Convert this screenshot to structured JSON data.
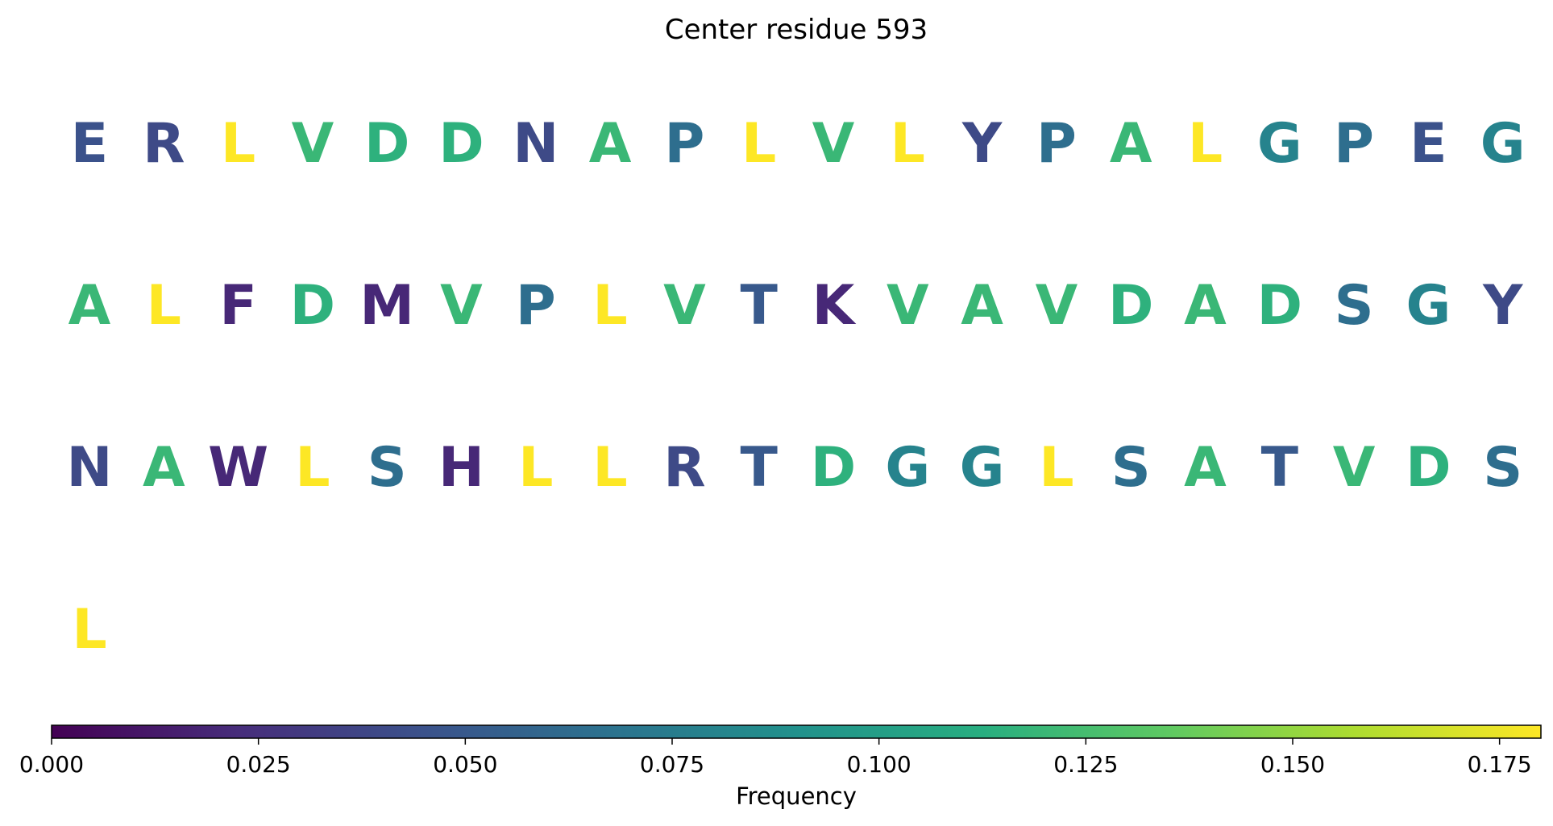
{
  "chart_data": {
    "type": "sequence-heatmap",
    "title": "Center residue 593",
    "colormap": "viridis",
    "vmin": 0.0,
    "vmax": 0.18,
    "colorbar": {
      "label": "Frequency",
      "ticks": [
        0.0,
        0.025,
        0.05,
        0.075,
        0.1,
        0.125,
        0.15,
        0.175
      ],
      "tick_labels": [
        "0.000",
        "0.025",
        "0.050",
        "0.075",
        "0.100",
        "0.125",
        "0.150",
        "0.175"
      ]
    },
    "columns_per_row": 20,
    "residues": [
      {
        "letter": "E",
        "value": 0.045
      },
      {
        "letter": "R",
        "value": 0.04
      },
      {
        "letter": "L",
        "value": 0.18
      },
      {
        "letter": "V",
        "value": 0.12
      },
      {
        "letter": "D",
        "value": 0.115
      },
      {
        "letter": "D",
        "value": 0.115
      },
      {
        "letter": "N",
        "value": 0.04
      },
      {
        "letter": "A",
        "value": 0.12
      },
      {
        "letter": "P",
        "value": 0.065
      },
      {
        "letter": "L",
        "value": 0.18
      },
      {
        "letter": "V",
        "value": 0.12
      },
      {
        "letter": "L",
        "value": 0.18
      },
      {
        "letter": "Y",
        "value": 0.04
      },
      {
        "letter": "P",
        "value": 0.065
      },
      {
        "letter": "A",
        "value": 0.12
      },
      {
        "letter": "L",
        "value": 0.18
      },
      {
        "letter": "G",
        "value": 0.08
      },
      {
        "letter": "P",
        "value": 0.065
      },
      {
        "letter": "E",
        "value": 0.045
      },
      {
        "letter": "G",
        "value": 0.08
      },
      {
        "letter": "A",
        "value": 0.12
      },
      {
        "letter": "L",
        "value": 0.18
      },
      {
        "letter": "F",
        "value": 0.02
      },
      {
        "letter": "D",
        "value": 0.115
      },
      {
        "letter": "M",
        "value": 0.02
      },
      {
        "letter": "V",
        "value": 0.12
      },
      {
        "letter": "P",
        "value": 0.065
      },
      {
        "letter": "L",
        "value": 0.18
      },
      {
        "letter": "V",
        "value": 0.12
      },
      {
        "letter": "T",
        "value": 0.05
      },
      {
        "letter": "K",
        "value": 0.02
      },
      {
        "letter": "V",
        "value": 0.12
      },
      {
        "letter": "A",
        "value": 0.12
      },
      {
        "letter": "V",
        "value": 0.12
      },
      {
        "letter": "D",
        "value": 0.115
      },
      {
        "letter": "A",
        "value": 0.12
      },
      {
        "letter": "D",
        "value": 0.115
      },
      {
        "letter": "S",
        "value": 0.065
      },
      {
        "letter": "G",
        "value": 0.08
      },
      {
        "letter": "Y",
        "value": 0.04
      },
      {
        "letter": "N",
        "value": 0.04
      },
      {
        "letter": "A",
        "value": 0.12
      },
      {
        "letter": "W",
        "value": 0.02
      },
      {
        "letter": "L",
        "value": 0.18
      },
      {
        "letter": "S",
        "value": 0.065
      },
      {
        "letter": "H",
        "value": 0.02
      },
      {
        "letter": "L",
        "value": 0.18
      },
      {
        "letter": "L",
        "value": 0.18
      },
      {
        "letter": "R",
        "value": 0.04
      },
      {
        "letter": "T",
        "value": 0.05
      },
      {
        "letter": "D",
        "value": 0.115
      },
      {
        "letter": "G",
        "value": 0.08
      },
      {
        "letter": "G",
        "value": 0.08
      },
      {
        "letter": "L",
        "value": 0.18
      },
      {
        "letter": "S",
        "value": 0.065
      },
      {
        "letter": "A",
        "value": 0.12
      },
      {
        "letter": "T",
        "value": 0.05
      },
      {
        "letter": "V",
        "value": 0.12
      },
      {
        "letter": "D",
        "value": 0.115
      },
      {
        "letter": "S",
        "value": 0.065
      },
      {
        "letter": "L",
        "value": 0.18
      }
    ]
  }
}
